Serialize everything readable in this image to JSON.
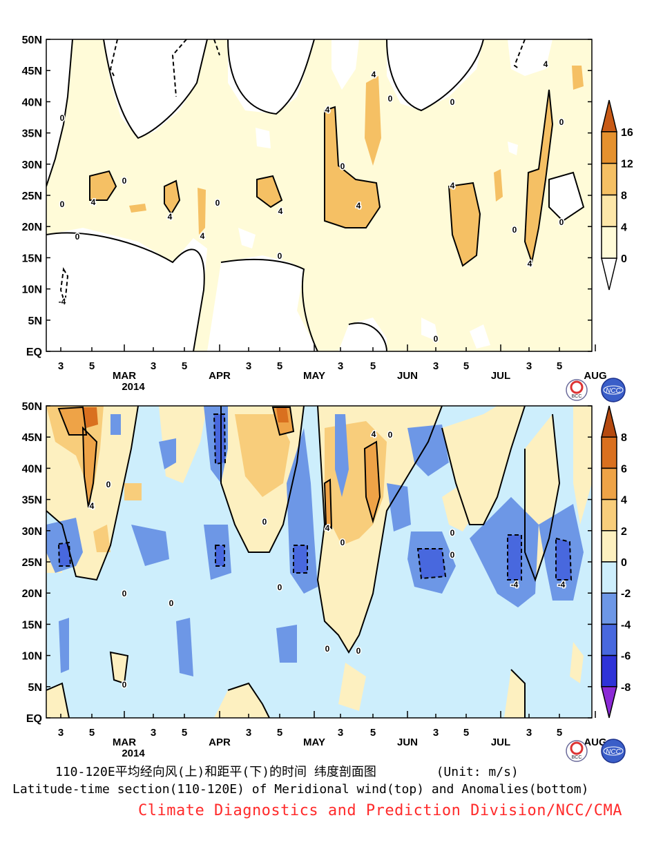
{
  "chart_data": [
    {
      "type": "heatmap",
      "panel": "top",
      "title": "",
      "xlabel": "",
      "ylabel": "",
      "y_ticks": [
        "50N",
        "45N",
        "40N",
        "35N",
        "30N",
        "25N",
        "20N",
        "15N",
        "10N",
        "5N",
        "EQ"
      ],
      "x_ticks": [
        "3",
        "5",
        "MAR",
        "3",
        "5",
        "APR",
        "3",
        "5",
        "MAY",
        "3",
        "5",
        "JUN",
        "3",
        "5",
        "JUL",
        "3",
        "5",
        "AUG"
      ],
      "x_subtitle": "2014",
      "colorbar": {
        "labels": [
          "16",
          "12",
          "8",
          "4",
          "0"
        ],
        "colors": [
          "#c85a16",
          "#e5912e",
          "#f5c064",
          "#fde7a9",
          "#fffbd8",
          "#ffffff"
        ]
      },
      "contour_labels": [
        "0",
        "0",
        "0",
        "0",
        "0",
        "0",
        "0",
        "0",
        "0",
        "0",
        "0",
        "0",
        "0",
        "4",
        "4",
        "4",
        "4",
        "4",
        "4",
        "4",
        "4",
        "4",
        "4",
        "-4"
      ],
      "regions": [
        {
          "level": "0-4",
          "lat_range": [
            0,
            50
          ]
        },
        {
          "level": "4-8",
          "lat_range": [
            15,
            40
          ]
        }
      ]
    },
    {
      "type": "heatmap",
      "panel": "bottom",
      "title": "",
      "xlabel": "",
      "ylabel": "",
      "y_ticks": [
        "50N",
        "45N",
        "40N",
        "35N",
        "30N",
        "25N",
        "20N",
        "15N",
        "10N",
        "5N",
        "EQ"
      ],
      "x_ticks": [
        "3",
        "5",
        "MAR",
        "3",
        "5",
        "APR",
        "3",
        "5",
        "MAY",
        "3",
        "5",
        "JUN",
        "3",
        "5",
        "JUL",
        "3",
        "5",
        "AUG"
      ],
      "x_subtitle": "2014",
      "colorbar": {
        "labels": [
          "8",
          "6",
          "4",
          "2",
          "0",
          "-2",
          "-4",
          "-6",
          "-8"
        ],
        "colors": [
          "#b54a10",
          "#d9701f",
          "#eea347",
          "#f8cd7b",
          "#fdf0c0",
          "#cdeefc",
          "#6d97e6",
          "#4868de",
          "#2f33d8",
          "#8b2ad6"
        ]
      },
      "contour_labels": [
        "0",
        "0",
        "0",
        "0",
        "0",
        "0",
        "0",
        "0",
        "0",
        "0",
        "0",
        "0",
        "4",
        "4",
        "4",
        "-4",
        "-4"
      ]
    }
  ],
  "logos": {
    "bcc": "BCC",
    "ncc": "NCC"
  },
  "captions": {
    "cn": "110-120E平均经向风(上)和距平(下)的时间 纬度剖面图        (Unit: m/s)",
    "en": "Latitude-time section(110-120E) of Meridional wind(top) and Anomalies(bottom)",
    "org": "Climate Diagnostics and Prediction Division/NCC/CMA"
  }
}
